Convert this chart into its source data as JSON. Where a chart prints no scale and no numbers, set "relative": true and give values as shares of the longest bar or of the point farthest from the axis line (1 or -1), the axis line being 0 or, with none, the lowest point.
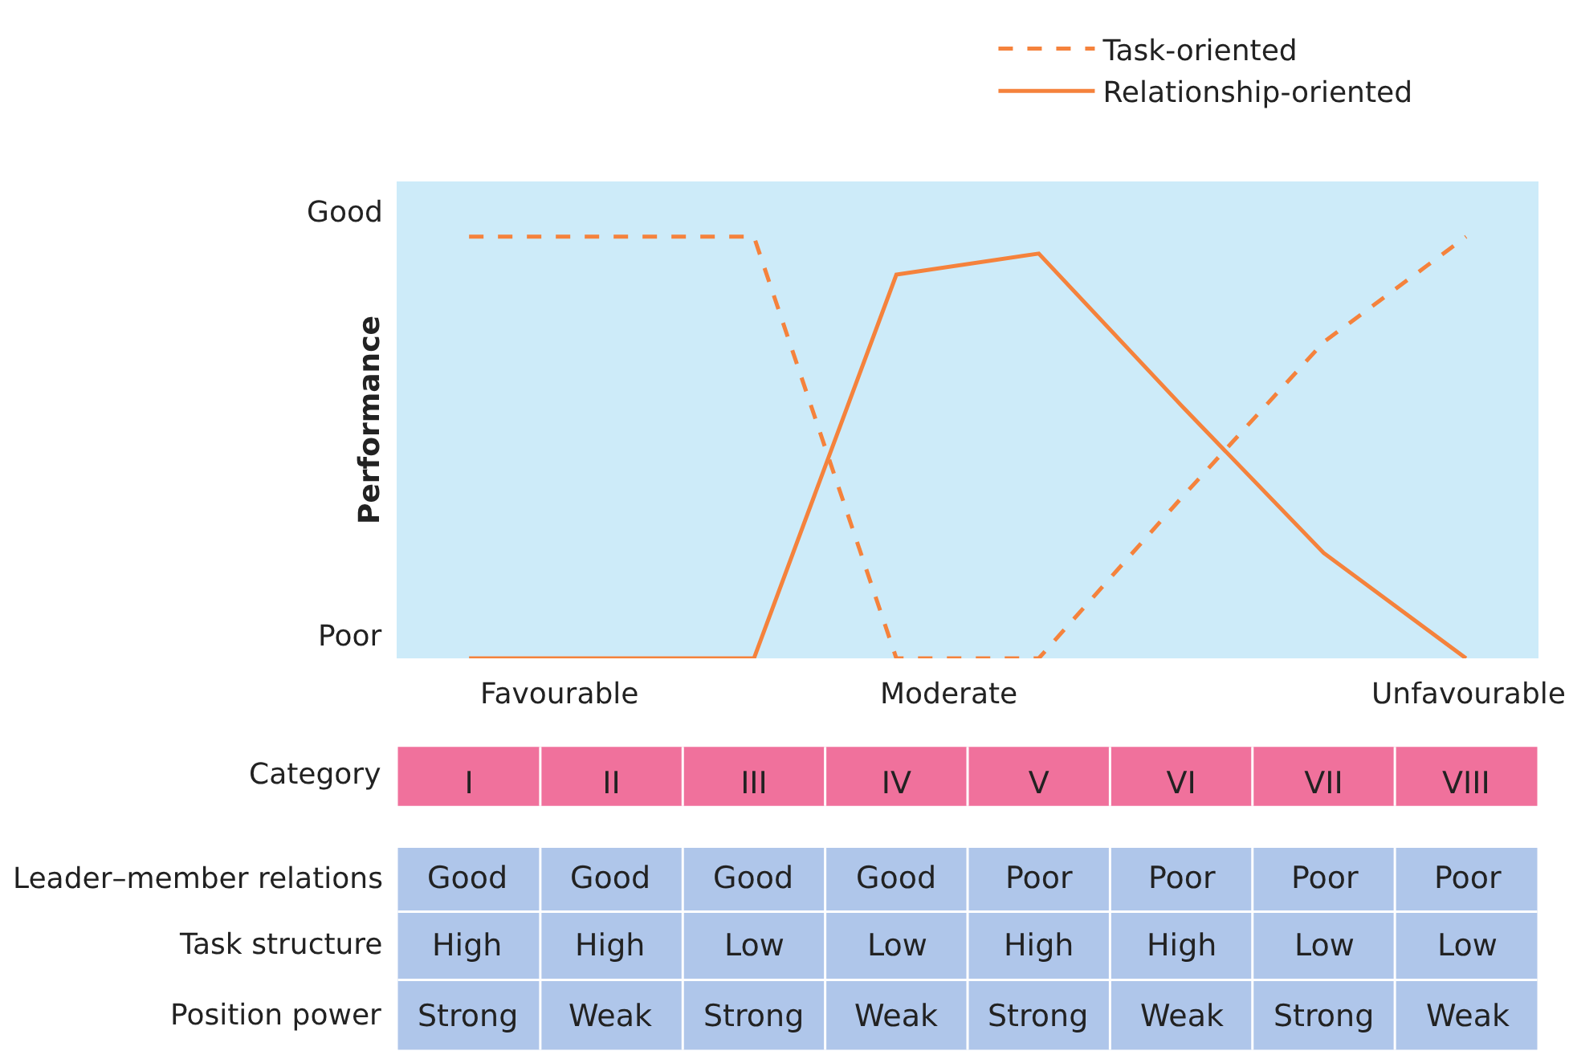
{
  "chart_data": {
    "type": "line",
    "relative": true,
    "ylabel": "Performance",
    "categories": [
      "I",
      "II",
      "III",
      "IV",
      "V",
      "VI",
      "VII",
      "VIII"
    ],
    "series": [
      {
        "name": "Task-oriented",
        "color": "#f5823c",
        "line_style": "dashed",
        "values": [
          1,
          1,
          1,
          0,
          0,
          0.38,
          0.75,
          1
        ]
      },
      {
        "name": "Relationship-oriented",
        "color": "#f5823c",
        "line_style": "solid",
        "values": [
          0,
          0,
          0,
          0.91,
          0.96,
          0.6,
          0.25,
          0
        ]
      }
    ],
    "annotations": [
      "Good",
      "Poor",
      "Favourable",
      "Moderate",
      "Unfavourable",
      "Category",
      "Leader–member relations",
      "Task structure",
      "Position power",
      "Good",
      "Good",
      "Good",
      "Good",
      "Poor",
      "Poor",
      "Poor",
      "Poor",
      "High",
      "High",
      "Low",
      "Low",
      "High",
      "High",
      "Low",
      "Low",
      "Strong",
      "Weak",
      "Strong",
      "Weak",
      "Strong",
      "Weak",
      "Strong",
      "Weak"
    ],
    "legend": "top",
    "grid": false,
    "marker": "none"
  }
}
